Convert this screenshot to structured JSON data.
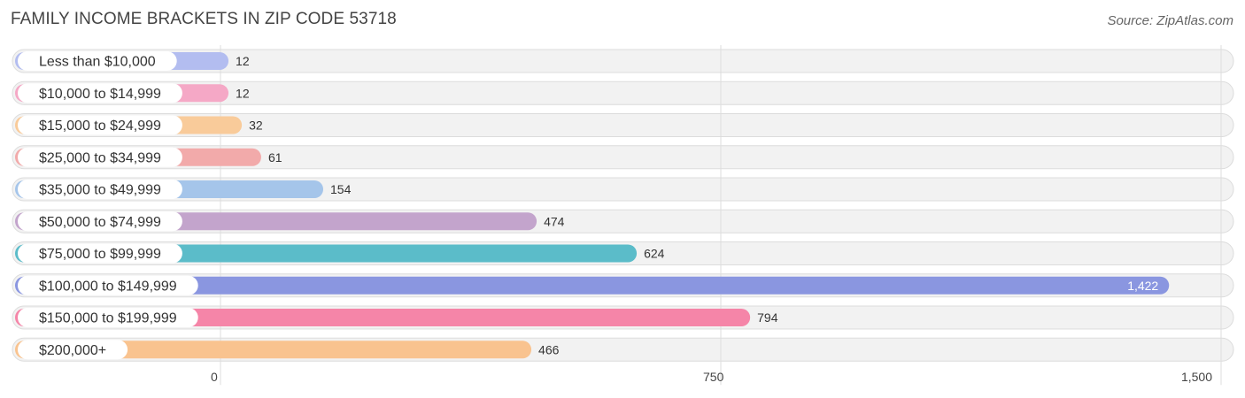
{
  "title": "FAMILY INCOME BRACKETS IN ZIP CODE 53718",
  "source": "Source: ZipAtlas.com",
  "chart_data": {
    "type": "bar",
    "orientation": "horizontal",
    "categories": [
      "Less than $10,000",
      "$10,000 to $14,999",
      "$15,000 to $24,999",
      "$25,000 to $34,999",
      "$35,000 to $49,999",
      "$50,000 to $74,999",
      "$75,000 to $99,999",
      "$100,000 to $149,999",
      "$150,000 to $199,999",
      "$200,000+"
    ],
    "values": [
      12,
      12,
      32,
      61,
      154,
      474,
      624,
      1422,
      794,
      466
    ],
    "value_labels": [
      "12",
      "12",
      "32",
      "61",
      "154",
      "474",
      "624",
      "1,422",
      "794",
      "466"
    ],
    "colors": [
      "#b3bdf0",
      "#f5a8c6",
      "#f9cb9a",
      "#f2aaaa",
      "#a5c5ea",
      "#c3a4cc",
      "#5bbcc9",
      "#8a96e0",
      "#f585a8",
      "#f9c38f"
    ],
    "xlim": [
      0,
      1500
    ],
    "ticks": [
      {
        "value": 0,
        "label": "0"
      },
      {
        "value": 750,
        "label": "750"
      },
      {
        "value": 1500,
        "label": "1,500"
      }
    ],
    "grid": true,
    "legend": false
  }
}
